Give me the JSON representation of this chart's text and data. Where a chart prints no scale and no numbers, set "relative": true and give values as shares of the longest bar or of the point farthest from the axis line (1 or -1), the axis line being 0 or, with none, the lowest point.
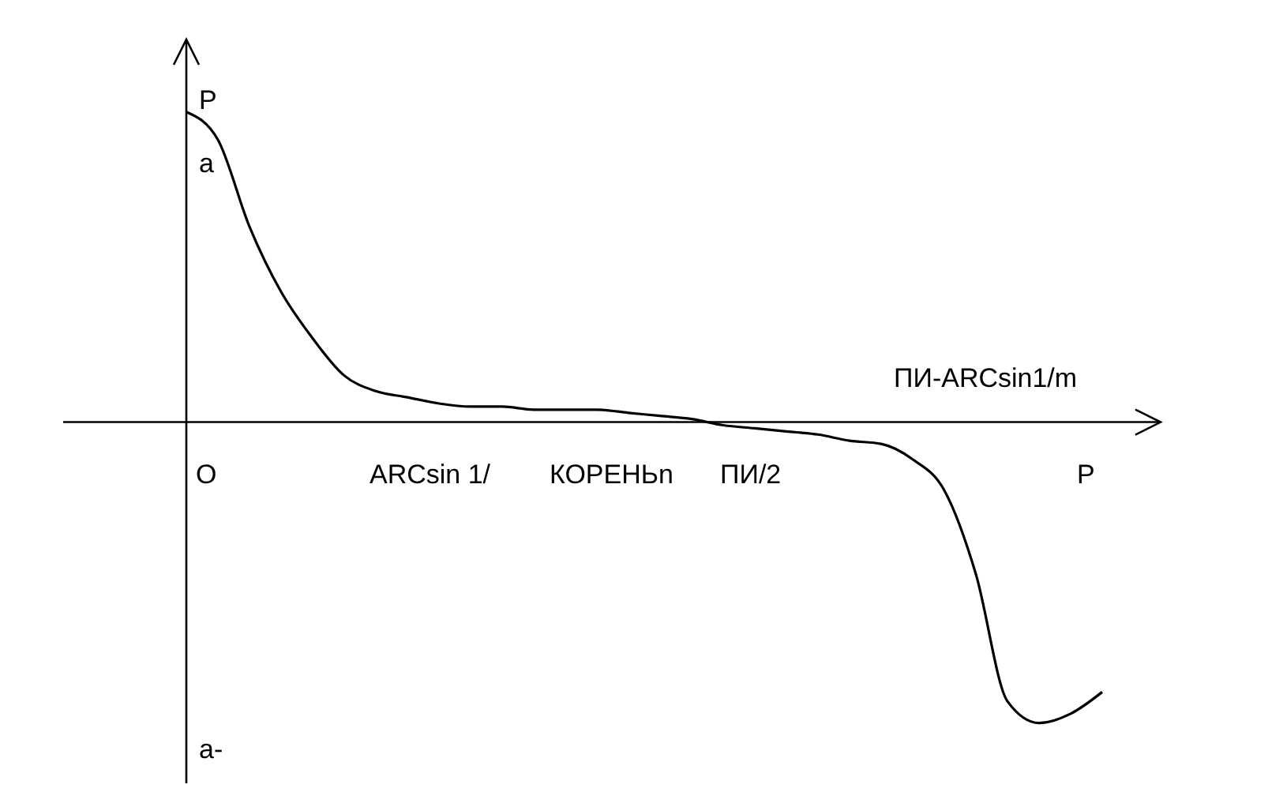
{
  "chart_data": {
    "type": "line",
    "relative": true,
    "ylabel": "P",
    "categories": [
      null,
      null,
      null,
      null,
      null,
      null,
      null,
      null,
      null,
      null,
      null,
      null,
      null,
      null,
      null,
      null,
      null,
      null,
      null,
      null,
      null,
      null,
      null,
      null,
      null,
      null,
      null,
      null,
      null,
      null
    ],
    "series": [
      {
        "color": "#000000",
        "values": [
          1.0,
          0.91,
          0.63,
          0.42,
          0.27,
          0.15,
          0.1,
          0.08,
          0.06,
          0.05,
          0.05,
          0.04,
          0.04,
          0.04,
          0.03,
          0.02,
          0.01,
          -0.01,
          -0.02,
          -0.03,
          -0.04,
          -0.06,
          -0.07,
          -0.12,
          -0.22,
          -0.49,
          -0.9,
          -0.97,
          -0.94,
          -0.87
        ]
      }
    ],
    "annotations": [
      "a",
      "ПИ-ARCsin1/m",
      "O",
      "ARCsin 1/",
      "КОРЕНЬn",
      "ПИ/2",
      "P",
      "a-"
    ]
  }
}
